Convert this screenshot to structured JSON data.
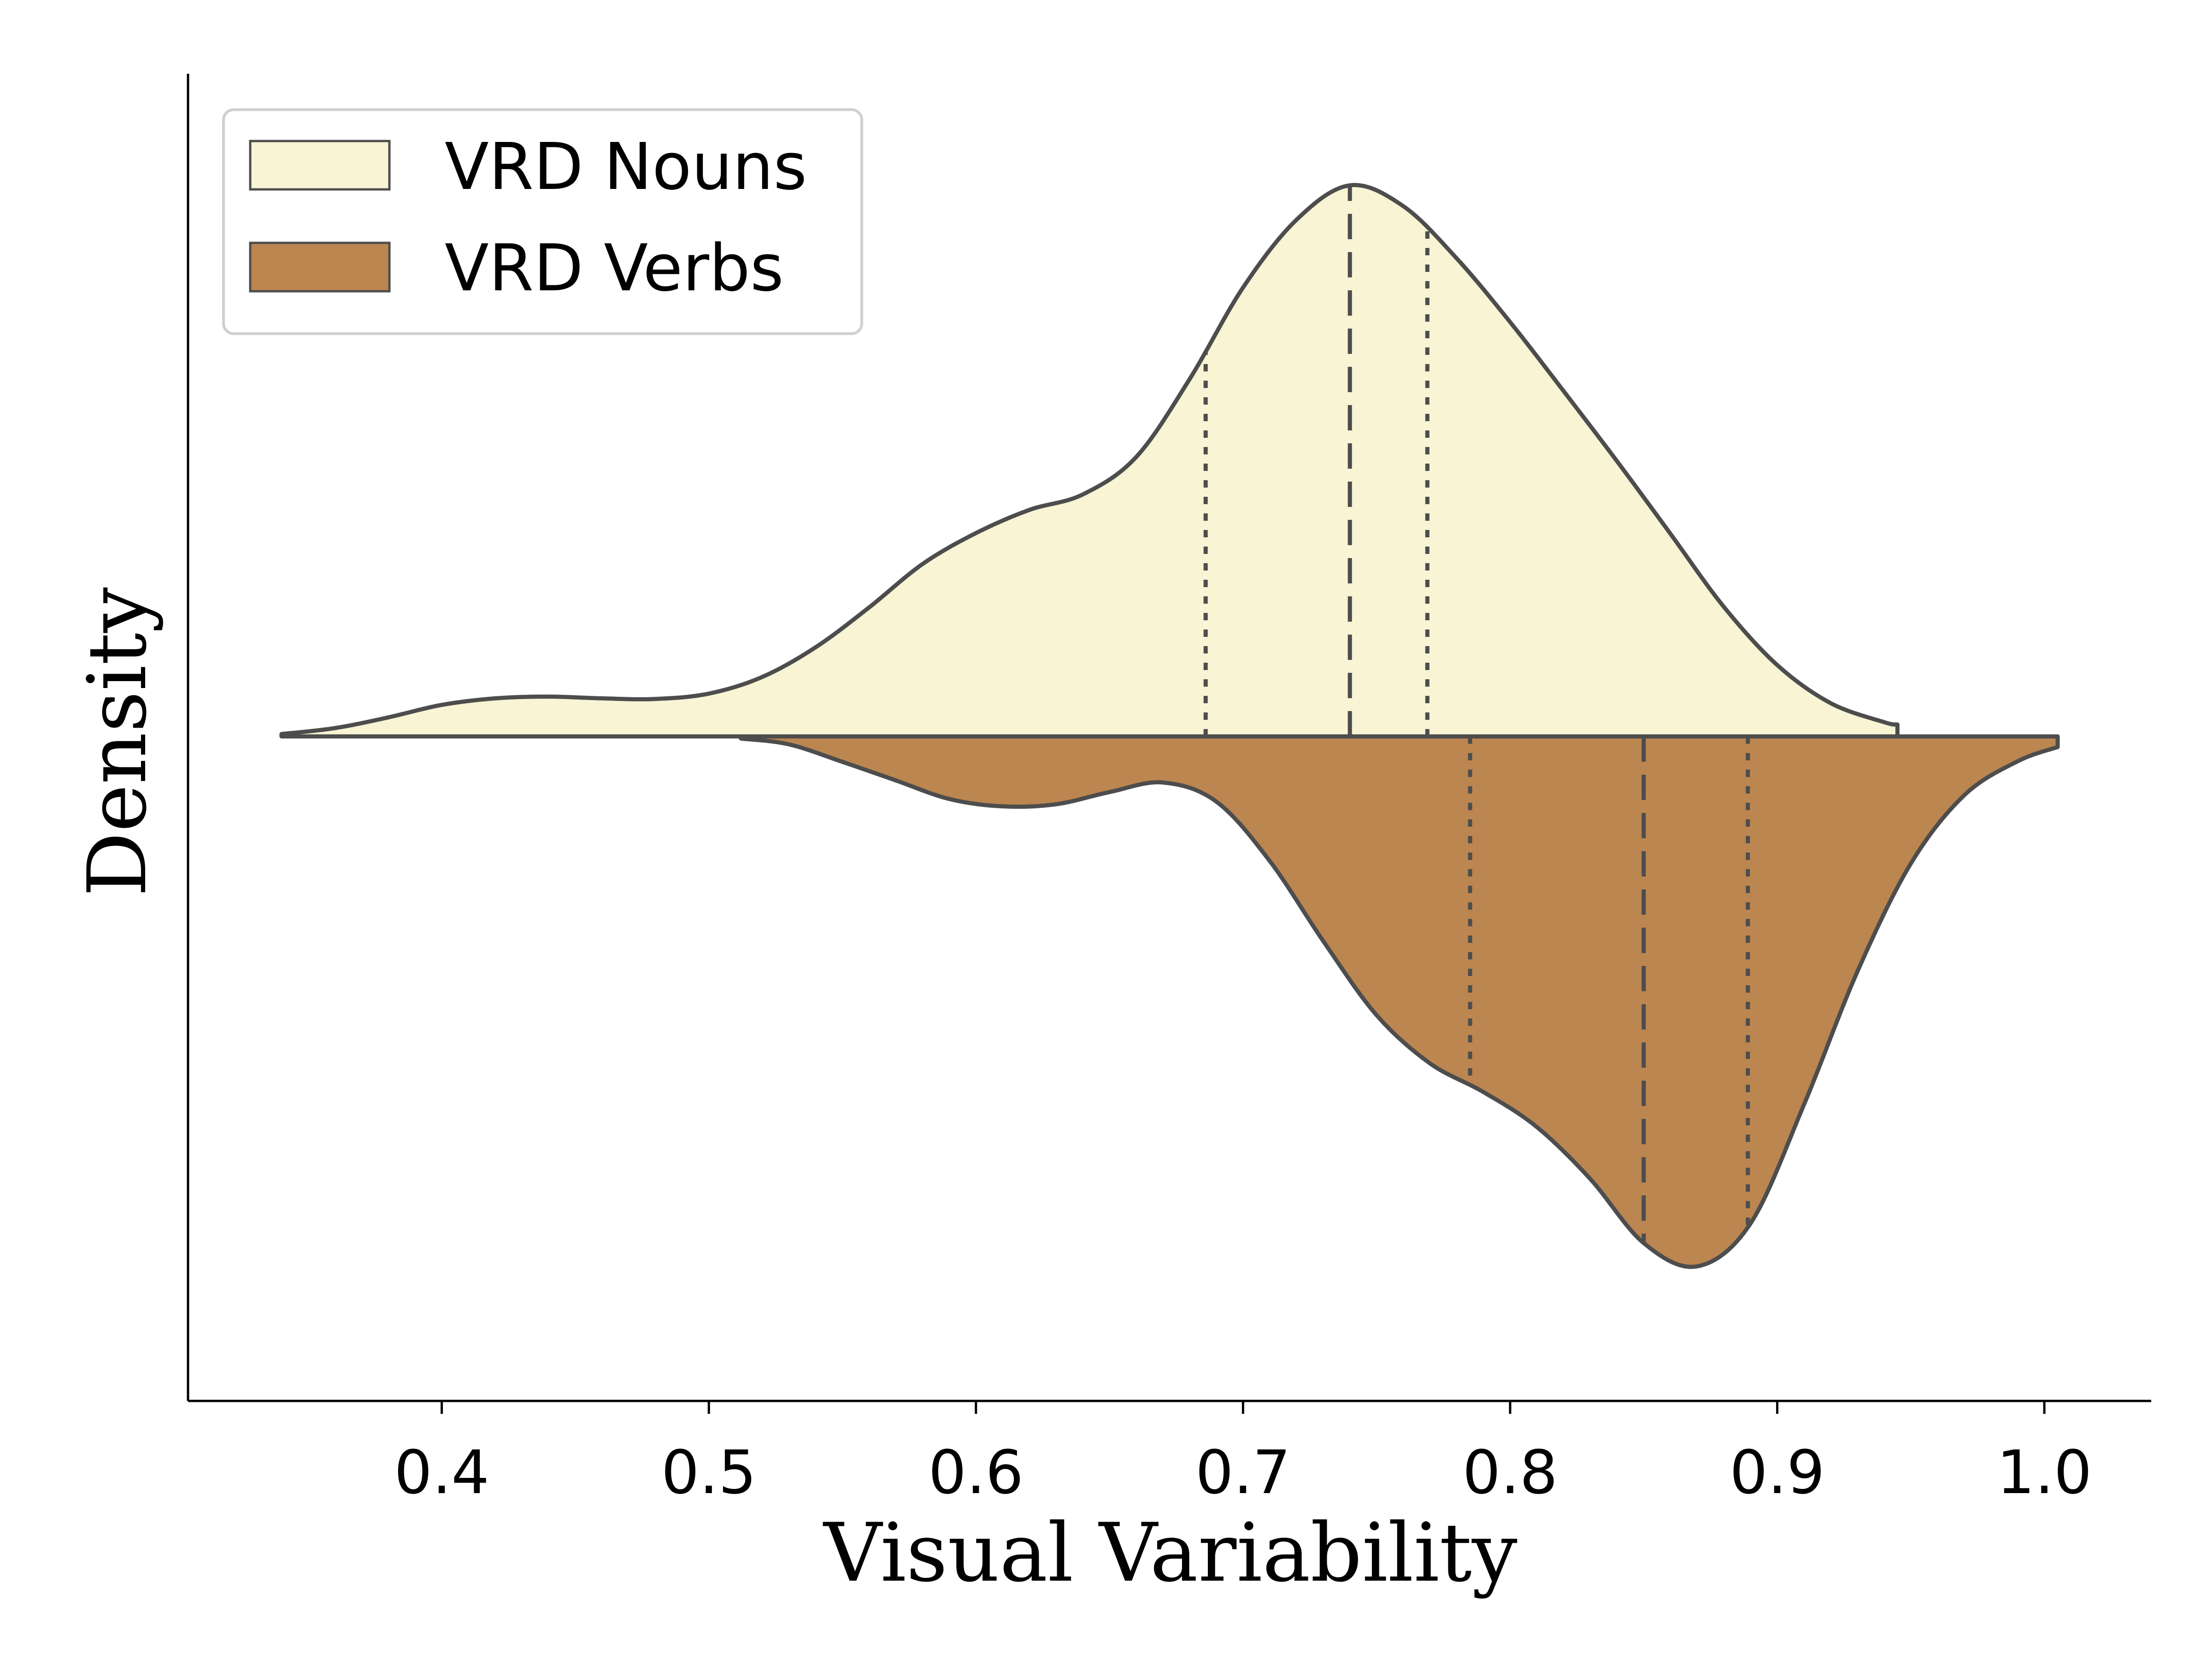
{
  "chart_data": {
    "type": "violin",
    "orientation": "horizontal-split",
    "xlabel": "Visual Variability",
    "ylabel": "Density",
    "xlim": [
      0.305,
      1.04
    ],
    "xticks": [
      0.4,
      0.5,
      0.6,
      0.7,
      0.8,
      0.9,
      1.0
    ],
    "xtick_labels": [
      "0.4",
      "0.5",
      "0.6",
      "0.7",
      "0.8",
      "0.9",
      "1.0"
    ],
    "y_ticks_shown": false,
    "grid": false,
    "legend": {
      "position": "upper-left"
    },
    "series": [
      {
        "name": "VRD Nouns",
        "side": "upper",
        "color": "#f8f4d4",
        "x": [
          0.34,
          0.36,
          0.38,
          0.4,
          0.42,
          0.44,
          0.46,
          0.48,
          0.5,
          0.52,
          0.54,
          0.56,
          0.58,
          0.6,
          0.62,
          0.64,
          0.66,
          0.68,
          0.7,
          0.72,
          0.74,
          0.76,
          0.78,
          0.8,
          0.82,
          0.84,
          0.86,
          0.88,
          0.9,
          0.92,
          0.94,
          0.945
        ],
        "density": [
          0.004,
          0.014,
          0.032,
          0.053,
          0.064,
          0.067,
          0.064,
          0.063,
          0.072,
          0.1,
          0.15,
          0.217,
          0.29,
          0.342,
          0.381,
          0.407,
          0.47,
          0.601,
          0.755,
          0.869,
          0.927,
          0.892,
          0.804,
          0.697,
          0.581,
          0.463,
          0.341,
          0.218,
          0.12,
          0.056,
          0.024,
          0.02
        ],
        "quartiles": [
          0.686,
          0.74,
          0.769
        ]
      },
      {
        "name": "VRD Verbs",
        "side": "lower",
        "color": "#bc8650",
        "x": [
          0.512,
          0.53,
          0.55,
          0.57,
          0.59,
          0.61,
          0.63,
          0.65,
          0.67,
          0.69,
          0.71,
          0.73,
          0.75,
          0.77,
          0.79,
          0.81,
          0.83,
          0.85,
          0.87,
          0.89,
          0.91,
          0.93,
          0.95,
          0.97,
          0.99,
          1.005
        ],
        "density": [
          0.004,
          0.015,
          0.048,
          0.083,
          0.118,
          0.132,
          0.128,
          0.105,
          0.087,
          0.123,
          0.235,
          0.386,
          0.526,
          0.617,
          0.671,
          0.737,
          0.835,
          0.956,
          1.0,
          0.919,
          0.695,
          0.444,
          0.24,
          0.111,
          0.047,
          0.02
        ],
        "quartiles": [
          0.785,
          0.85,
          0.889
        ]
      }
    ]
  }
}
